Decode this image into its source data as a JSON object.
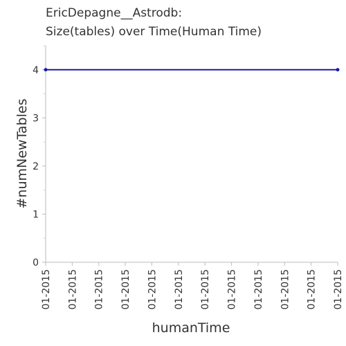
{
  "chart_data": {
    "type": "line",
    "title": "EricDepagne__Astrodb:",
    "subtitle": "Size(tables) over Time(Human Time)",
    "xlabel": "humanTime",
    "ylabel": "#numNewTables",
    "ylim": [
      0,
      4.5
    ],
    "y_ticks": [
      0,
      1,
      2,
      3,
      4
    ],
    "x_tick_labels": [
      "01-2015",
      "01-2015",
      "01-2015",
      "01-2015",
      "01-2015",
      "01-2015",
      "01-2015",
      "01-2015",
      "01-2015",
      "01-2015",
      "01-2015",
      "01-2015"
    ],
    "series": [
      {
        "x": [
          "01-2015",
          "01-2015"
        ],
        "values": [
          4,
          4
        ]
      }
    ],
    "grid": false,
    "line_color": "#1a1aa6"
  }
}
